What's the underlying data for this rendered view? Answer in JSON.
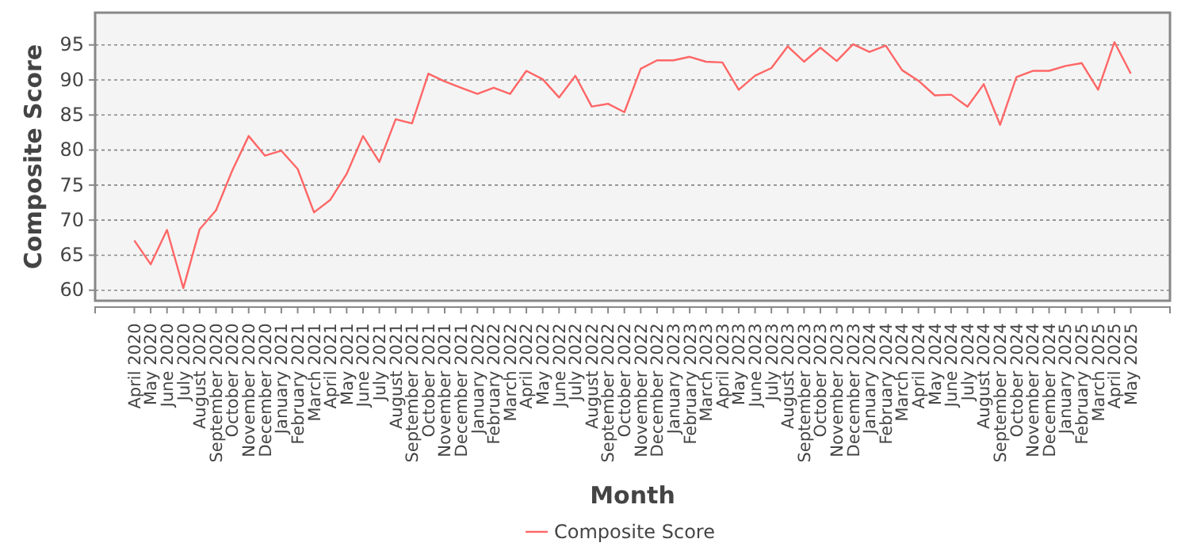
{
  "chart_data": {
    "type": "line",
    "xlabel": "Month",
    "ylabel": "Composite Score",
    "categories": [
      "April 2020",
      "May 2020",
      "June 2020",
      "July 2020",
      "August 2020",
      "September 2020",
      "October 2020",
      "November 2020",
      "December 2020",
      "January 2021",
      "February 2021",
      "March 2021",
      "April 2021",
      "May 2021",
      "June 2021",
      "July 2021",
      "August 2021",
      "September 2021",
      "October 2021",
      "November 2021",
      "December 2021",
      "January 2022",
      "February 2022",
      "March 2022",
      "April 2022",
      "May 2022",
      "June 2022",
      "July 2022",
      "August 2022",
      "September 2022",
      "October 2022",
      "November 2022",
      "December 2022",
      "January 2023",
      "February 2023",
      "March 2023",
      "April 2023",
      "May 2023",
      "June 2023",
      "July 2023",
      "August 2023",
      "September 2023",
      "October 2023",
      "November 2023",
      "December 2023",
      "January 2024",
      "February 2024",
      "March 2024",
      "April 2024",
      "May 2024",
      "June 2024",
      "July 2024",
      "August 2024",
      "September 2024",
      "October 2024",
      "November 2024",
      "December 2024",
      "January 2025",
      "February 2025",
      "March 2025",
      "April 2025",
      "May 2025"
    ],
    "series": [
      {
        "name": "Composite Score",
        "color": "#ff6666",
        "values": [
          67.1,
          63.7,
          68.6,
          60.3,
          68.7,
          71.4,
          77.1,
          82.0,
          79.2,
          79.9,
          77.3,
          71.1,
          72.9,
          76.6,
          82.0,
          78.3,
          84.4,
          83.8,
          90.9,
          89.8,
          88.9,
          88.0,
          88.9,
          88.0,
          91.3,
          90.1,
          87.5,
          90.6,
          86.2,
          86.6,
          85.4,
          91.6,
          92.8,
          92.8,
          93.3,
          92.6,
          92.5,
          88.6,
          90.6,
          91.7,
          94.8,
          92.6,
          94.6,
          92.7,
          95.1,
          94.0,
          94.9,
          91.4,
          89.9,
          87.8,
          87.9,
          86.2,
          89.4,
          83.6,
          90.4,
          91.3,
          91.3,
          92.0,
          92.4,
          88.6,
          95.4,
          90.9
        ]
      }
    ],
    "ylim": [
      58.5,
      99.6
    ],
    "yticks": [
      60,
      65,
      70,
      75,
      80,
      85,
      90,
      95
    ],
    "grid": "y",
    "legend": "bottom",
    "marker": "none",
    "line_style": "solid"
  }
}
